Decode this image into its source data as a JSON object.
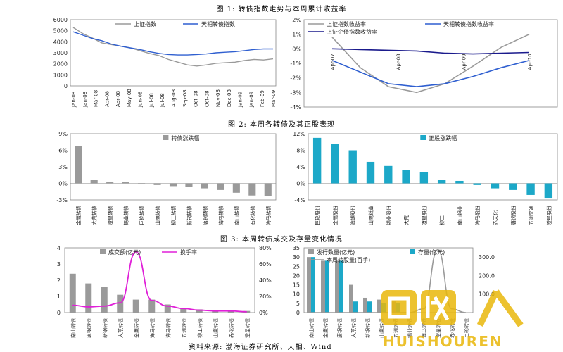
{
  "figures": {
    "fig1_title": "图 1:  转债指数走势与本周累计收益率",
    "fig2_title": "图 2:  本周各转债及其正股表现",
    "fig3_title": "图 3:  本周转债成交及存量变化情况"
  },
  "source_note": "资料来源:  渤海证券研究所、天相、Wind",
  "watermark_text": "HUISHOUREN",
  "colors": {
    "gray": "#9a9a9a",
    "blue": "#2f5fd0",
    "navy": "#1a1a8c",
    "cyan": "#1ca8c8",
    "magenta": "#e020d8"
  },
  "chart_data": [
    {
      "id": "c1",
      "type": "line",
      "series": [
        {
          "name": "上证指数",
          "color": "#9a9a9a",
          "values": [
            5300,
            4750,
            4350,
            3900,
            3750,
            3600,
            3450,
            3200,
            2950,
            2750,
            2400,
            2150,
            1900,
            1800,
            1900,
            2050,
            2100,
            2150,
            2300,
            2400,
            2350,
            2450
          ]
        },
        {
          "name": "天相转债指数",
          "color": "#2f5fd0",
          "values": [
            4900,
            4600,
            4300,
            4100,
            3800,
            3600,
            3450,
            3300,
            3100,
            2950,
            2850,
            2800,
            2800,
            2850,
            2900,
            3000,
            3050,
            3100,
            3200,
            3300,
            3350,
            3350
          ]
        }
      ],
      "x_ticks": [
        "Jan-08",
        "Jan-08",
        "Mar-08",
        "Apr-08",
        "Apr-08",
        "May-08",
        "Jun-08",
        "Jul-08",
        "Jul-08",
        "Aug-08",
        "Sep-08",
        "Oct-08",
        "Oct-08",
        "Nov-08",
        "Dec-08",
        "Jan-09",
        "Jan-09",
        "Feb-09",
        "Mar-09"
      ],
      "yticks": [
        "0",
        "1000",
        "2000",
        "3000",
        "4000",
        "5000",
        "6000"
      ],
      "ylim": [
        0,
        6000
      ]
    },
    {
      "id": "c2",
      "type": "line",
      "series": [
        {
          "name": "上证指数收益率",
          "color": "#9a9a9a",
          "values": [
            0.8,
            -1.3,
            -2.6,
            -3.0,
            -2.4,
            -1.2,
            0.1,
            1.0
          ]
        },
        {
          "name": "天相转债指数收益率",
          "color": "#2f5fd0",
          "values": [
            -0.8,
            -1.6,
            -2.4,
            -2.6,
            -2.4,
            -1.9,
            -1.3,
            -0.8
          ]
        },
        {
          "name": "上证企债指数收益率",
          "color": "#1a1a8c",
          "values": [
            0.0,
            -0.05,
            -0.1,
            -0.15,
            -0.3,
            -0.35,
            -0.3,
            -0.25
          ]
        }
      ],
      "x_ticks": [
        "Apr-07",
        "Apr-08",
        "Apr-09",
        "Apr-10"
      ],
      "yticks": [
        "-4%",
        "-3%",
        "-2%",
        "-1%",
        "0%",
        "1%",
        "2%"
      ],
      "ylim": [
        -4,
        2
      ]
    },
    {
      "id": "c3",
      "type": "bar",
      "series_name": "转债涨跌幅",
      "color": "#9a9a9a",
      "categories": [
        "金鹰转债",
        "大荒转债",
        "澄星转债",
        "锡业转债",
        "巨轮转债",
        "山鹰转债",
        "柳工转债",
        "新钢转债",
        "唐钢转债",
        "海马转债",
        "南山转债",
        "石化转债",
        "海马转债"
      ],
      "values": [
        6.8,
        0.6,
        0.3,
        0.3,
        -0.1,
        -0.3,
        -0.5,
        -0.7,
        -0.9,
        -1.2,
        -1.7,
        -2.2,
        -2.3
      ],
      "yticks": [
        "-3%",
        "0%",
        "3%",
        "6%",
        "9%"
      ],
      "ylim": [
        -3,
        9
      ]
    },
    {
      "id": "c4",
      "type": "bar",
      "series_name": "正股涨跌幅",
      "color": "#1ca8c8",
      "categories": [
        "巨轮股份",
        "金鹰股份",
        "海螺股份",
        "山鹰纸业",
        "锡业股份",
        "大荒",
        "澄星股份",
        "柳工",
        "南山铝业",
        "海马股份",
        "赤天化",
        "唐钢股份",
        "五洲交通",
        "澄星股份"
      ],
      "values": [
        11.0,
        9.5,
        8.0,
        5.2,
        4.2,
        3.2,
        2.8,
        0.8,
        0.6,
        -0.4,
        -1.2,
        -1.6,
        -2.8,
        -3.5
      ],
      "yticks": [
        "-4%",
        "0%",
        "4%",
        "8%",
        "12%"
      ],
      "ylim": [
        -4,
        12
      ]
    },
    {
      "id": "c5",
      "type": "bar+line",
      "bar_name": "成交额(亿元)",
      "bar_color": "#9a9a9a",
      "line_name": "换手率",
      "line_color": "#e020d8",
      "categories": [
        "南山转债",
        "唐钢转债",
        "新钢转债",
        "大荒转债",
        "金鹰转债",
        "海马转债",
        "海马转债",
        "五洲转债",
        "柳工转债",
        "山鹰转债",
        "赤化转债",
        "澄星转债"
      ],
      "bar_values": [
        2.4,
        1.8,
        1.6,
        1.1,
        0.8,
        0.8,
        0.5,
        0.3,
        0.2,
        0.15,
        0.1,
        0.1
      ],
      "line_values": [
        9,
        7,
        8,
        12,
        75,
        15,
        8,
        5,
        3,
        2,
        2,
        1
      ],
      "yticks_left": [
        "0",
        "1",
        "2",
        "3",
        "4"
      ],
      "ylim_left": [
        0,
        4
      ],
      "yticks_right": [
        "0%",
        "20%",
        "40%",
        "60%",
        "80%"
      ],
      "ylim_right": [
        0,
        80
      ]
    },
    {
      "id": "c6",
      "type": "bar+line",
      "series": [
        {
          "name": "发行数量(亿元)",
          "color": "#9a9a9a",
          "values": [
            30,
            28,
            28,
            15,
            8,
            7,
            6,
            0,
            0,
            0,
            0,
            0
          ]
        },
        {
          "name": "存量(亿元)",
          "color": "#1ca8c8",
          "values": [
            30,
            28,
            28,
            6,
            6,
            5,
            5,
            0,
            0,
            0,
            0,
            0
          ]
        }
      ],
      "line_name": "本周转股量(百手)",
      "line_color": "#9a9a9a",
      "categories": [
        "南山转债",
        "金鹰转债",
        "唐钢转债",
        "大荒转债",
        "新钢转债",
        "山鹰转债",
        "五洲转债",
        "锡业转债",
        "海马转债",
        "澄星转债",
        "赤化转债",
        "巨轮转债"
      ],
      "line_values": [
        0,
        0,
        0,
        0,
        0,
        0,
        0,
        0,
        20,
        340,
        20,
        0
      ],
      "yticks_left": [
        "0",
        "5",
        "10",
        "15",
        "20",
        "25",
        "30",
        "35"
      ],
      "ylim_left": [
        0,
        35
      ],
      "yticks_right": [
        "100.0",
        "200.0",
        "300.0"
      ],
      "ylim_right": [
        0,
        350
      ]
    }
  ]
}
